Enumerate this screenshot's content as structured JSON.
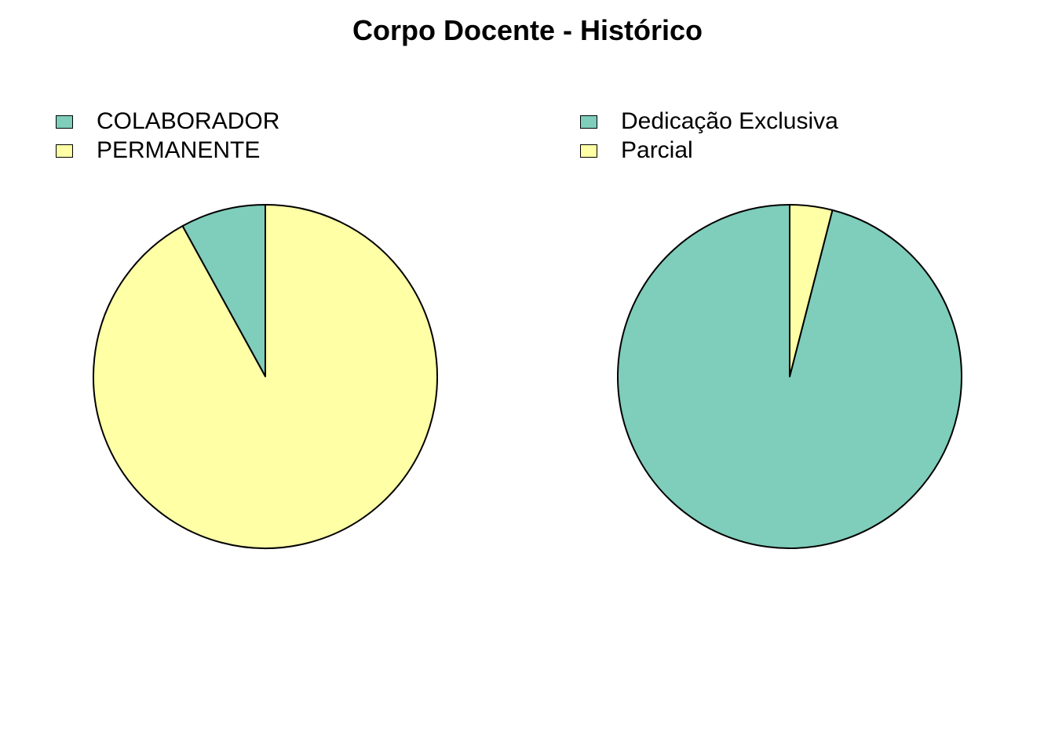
{
  "title": "Corpo Docente - Histórico",
  "colors": {
    "teal": "#7FCDBB",
    "yellow": "#FFFFA6",
    "stroke": "#000000"
  },
  "chart_data": [
    {
      "type": "pie",
      "title": "",
      "legend_position": "top-left",
      "start": "12 o'clock, counter-clockwise",
      "slices": [
        {
          "label": "COLABORADOR",
          "value": 8,
          "color": "#7FCDBB"
        },
        {
          "label": "PERMANENTE",
          "value": 92,
          "color": "#FFFFA6"
        }
      ]
    },
    {
      "type": "pie",
      "title": "",
      "legend_position": "top-left",
      "start": "12 o'clock, counter-clockwise",
      "slices": [
        {
          "label": "Dedicação Exclusiva",
          "value": 96,
          "color": "#7FCDBB"
        },
        {
          "label": "Parcial",
          "value": 4,
          "color": "#FFFFA6"
        }
      ]
    }
  ]
}
